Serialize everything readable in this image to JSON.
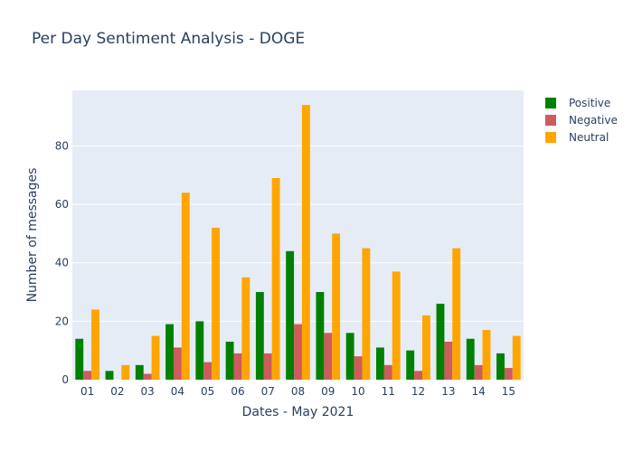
{
  "chart_data": {
    "type": "bar",
    "title": "Per Day Sentiment Analysis - DOGE",
    "xlabel": "Dates - May 2021",
    "ylabel": "Number of messages",
    "categories": [
      "01",
      "02",
      "03",
      "04",
      "05",
      "06",
      "07",
      "08",
      "09",
      "10",
      "11",
      "12",
      "13",
      "14",
      "15"
    ],
    "ylim": [
      0,
      99
    ],
    "yticks": [
      0,
      20,
      40,
      60,
      80
    ],
    "grid": true,
    "legend_position": "top-right",
    "series": [
      {
        "name": "Positive",
        "color": "#008000",
        "values": [
          14,
          3,
          5,
          19,
          20,
          13,
          30,
          44,
          30,
          16,
          11,
          10,
          26,
          14,
          9
        ]
      },
      {
        "name": "Negative",
        "color": "#cd5c5c",
        "values": [
          3,
          0,
          2,
          11,
          6,
          9,
          9,
          19,
          16,
          8,
          5,
          3,
          13,
          5,
          4
        ]
      },
      {
        "name": "Neutral",
        "color": "#ffa500",
        "values": [
          24,
          5,
          15,
          64,
          52,
          35,
          69,
          94,
          50,
          45,
          37,
          22,
          45,
          17,
          15
        ]
      }
    ]
  }
}
